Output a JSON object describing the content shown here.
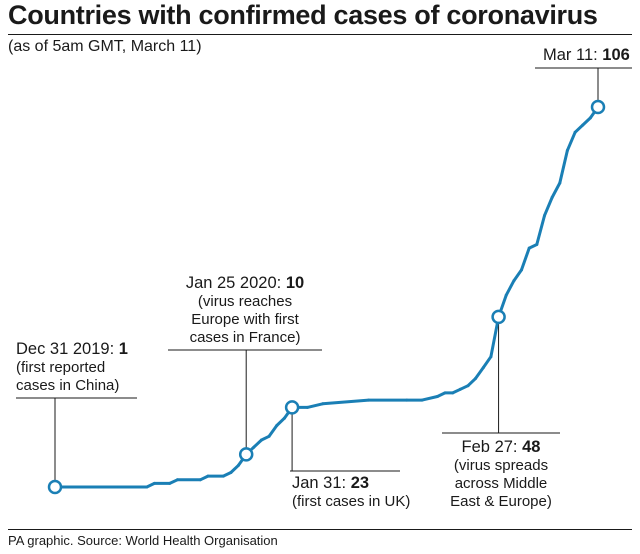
{
  "title": "Countries with confirmed cases of coronavirus",
  "subtitle": "(as of 5am GMT, March 11)",
  "source": "PA graphic. Source: World Health Organisation",
  "colors": {
    "line": "#1a7fb5",
    "text": "#1a1a1a"
  },
  "annotations": {
    "dec31": {
      "label": "Dec 31 2019: ",
      "value": "1",
      "note1": "(first reported",
      "note2": "cases in China)"
    },
    "jan25": {
      "label": "Jan 25 2020: ",
      "value": "10",
      "note1": "(virus reaches",
      "note2": "Europe with first",
      "note3": "cases in France)"
    },
    "jan31": {
      "label": "Jan 31: ",
      "value": "23",
      "note1": "(first cases in UK)"
    },
    "feb27": {
      "label": "Feb 27: ",
      "value": "48",
      "note1": "(virus spreads",
      "note2": "across Middle",
      "note3": "East & Europe)"
    },
    "mar11": {
      "label": "Mar 11: ",
      "value": "106"
    }
  },
  "chart_data": {
    "type": "line",
    "x": [
      "2019-12-31",
      "2020-01-04",
      "2020-01-08",
      "2020-01-12",
      "2020-01-13",
      "2020-01-15",
      "2020-01-16",
      "2020-01-19",
      "2020-01-20",
      "2020-01-22",
      "2020-01-23",
      "2020-01-24",
      "2020-01-25",
      "2020-01-26",
      "2020-01-27",
      "2020-01-28",
      "2020-01-29",
      "2020-01-30",
      "2020-01-31",
      "2020-02-02",
      "2020-02-04",
      "2020-02-10",
      "2020-02-15",
      "2020-02-17",
      "2020-02-19",
      "2020-02-20",
      "2020-02-21",
      "2020-02-22",
      "2020-02-23",
      "2020-02-24",
      "2020-02-25",
      "2020-02-26",
      "2020-02-27",
      "2020-02-28",
      "2020-02-29",
      "2020-03-01",
      "2020-03-02",
      "2020-03-03",
      "2020-03-04",
      "2020-03-05",
      "2020-03-06",
      "2020-03-07",
      "2020-03-08",
      "2020-03-09",
      "2020-03-10",
      "2020-03-11"
    ],
    "values": [
      1,
      1,
      1,
      1,
      2,
      2,
      3,
      3,
      4,
      4,
      5,
      7,
      10,
      12,
      14,
      15,
      18,
      20,
      23,
      23,
      24,
      25,
      25,
      25,
      26,
      27,
      27,
      28,
      29,
      31,
      34,
      37,
      48,
      54,
      58,
      61,
      67,
      68,
      76,
      81,
      85,
      94,
      99,
      101,
      103,
      106
    ],
    "highlighted_points": [
      {
        "x": "2019-12-31",
        "y": 1
      },
      {
        "x": "2020-01-25",
        "y": 10
      },
      {
        "x": "2020-01-31",
        "y": 23
      },
      {
        "x": "2020-02-27",
        "y": 48
      },
      {
        "x": "2020-03-11",
        "y": 106
      }
    ],
    "title": "Countries with confirmed cases of coronavirus",
    "subtitle": "(as of 5am GMT, March 11)",
    "ylim": [
      0,
      106
    ],
    "grid": false,
    "legend": "none"
  }
}
